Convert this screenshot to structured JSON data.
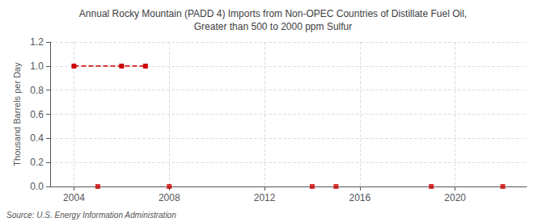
{
  "chart_data": {
    "type": "line",
    "title": "Annual Rocky Mountain (PADD 4) Imports from Non-OPEC Countries of Distillate Fuel Oil,\nGreater than 500 to 2000 ppm Sulfur",
    "ylabel": "Thousand Barrels per Day",
    "annotation": "Source: U.S. Energy Information Administration",
    "xlim": [
      2003,
      2023
    ],
    "xticks": [
      2004,
      2008,
      2012,
      2016,
      2020
    ],
    "ylim": [
      0.0,
      1.2
    ],
    "yticks": [
      {
        "value": 0.0,
        "label": "0.0"
      },
      0.2,
      0.4,
      0.6,
      0.8,
      {
        "value": 1.0,
        "label": "1.0"
      },
      1.2
    ],
    "grid": true,
    "series": [
      {
        "type": "line",
        "x": [
          2004,
          2006,
          2007
        ],
        "values": [
          1.0,
          1.0,
          1.0
        ],
        "color": "#cc0000",
        "marker": "square",
        "line_style": "dashed"
      },
      {
        "type": "scatter",
        "x": [
          2005,
          2008,
          2014,
          2015,
          2019,
          2022
        ],
        "values": [
          0.0,
          0.0,
          0.0,
          0.0,
          0.0,
          0.0
        ],
        "color": "#cc0000",
        "marker": "square"
      }
    ]
  }
}
